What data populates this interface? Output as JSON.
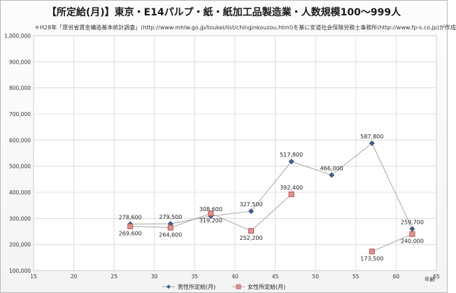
{
  "title": "【所定給(月)】東京・E14パルプ・紙・紙加工品製造業・人数規模100〜999人",
  "subtitle": "＊H28年「厚労省賃金構造基本統計調査」(http://www.mhlw.go.jp/toukei/list/chinginkouzou.html)を基に安道社会保険労務士事務所(http://www.fp-s.co.jp)が作成",
  "chart_data": {
    "type": "line",
    "xlabel": "年齢",
    "ylabel": "",
    "xlim": [
      15,
      65
    ],
    "ylim": [
      100000,
      1000000
    ],
    "x_ticks": [
      15,
      20,
      25,
      30,
      35,
      40,
      45,
      50,
      55,
      60,
      65
    ],
    "y_ticks": [
      "100,000",
      "200,000",
      "300,000",
      "400,000",
      "500,000",
      "600,000",
      "700,000",
      "800,000",
      "900,000",
      "1,000,000"
    ],
    "legend_position": "bottom",
    "grid": true,
    "series": [
      {
        "name": "男性所定給(月)",
        "color": "#3b5f92",
        "marker": "diamond",
        "x": [
          27,
          32,
          37,
          42,
          47,
          52,
          57,
          62
        ],
        "y": [
          278600,
          279500,
          308600,
          327500,
          517800,
          466000,
          587800,
          259700
        ],
        "labels": [
          "278,600",
          "279,500",
          "308,600",
          "327,500",
          "517,800",
          "466,000",
          "587,800",
          "259,700"
        ],
        "label_pos": [
          "above",
          "above",
          "above",
          "above",
          "above",
          "above",
          "above",
          "above"
        ]
      },
      {
        "name": "女性所定給(月)",
        "color": "#c0504d",
        "marker": "square",
        "x": [
          27,
          32,
          37,
          42,
          47,
          52,
          57,
          62
        ],
        "y": [
          269600,
          264600,
          319200,
          252200,
          392400,
          null,
          173500,
          240000
        ],
        "labels": [
          "269,600",
          "264,600",
          "319,200",
          "252,200",
          "392,400",
          "",
          "173,500",
          "240,000"
        ],
        "label_pos": [
          "below",
          "below",
          "below",
          "below",
          "above",
          "below",
          "below",
          "below"
        ]
      }
    ]
  }
}
